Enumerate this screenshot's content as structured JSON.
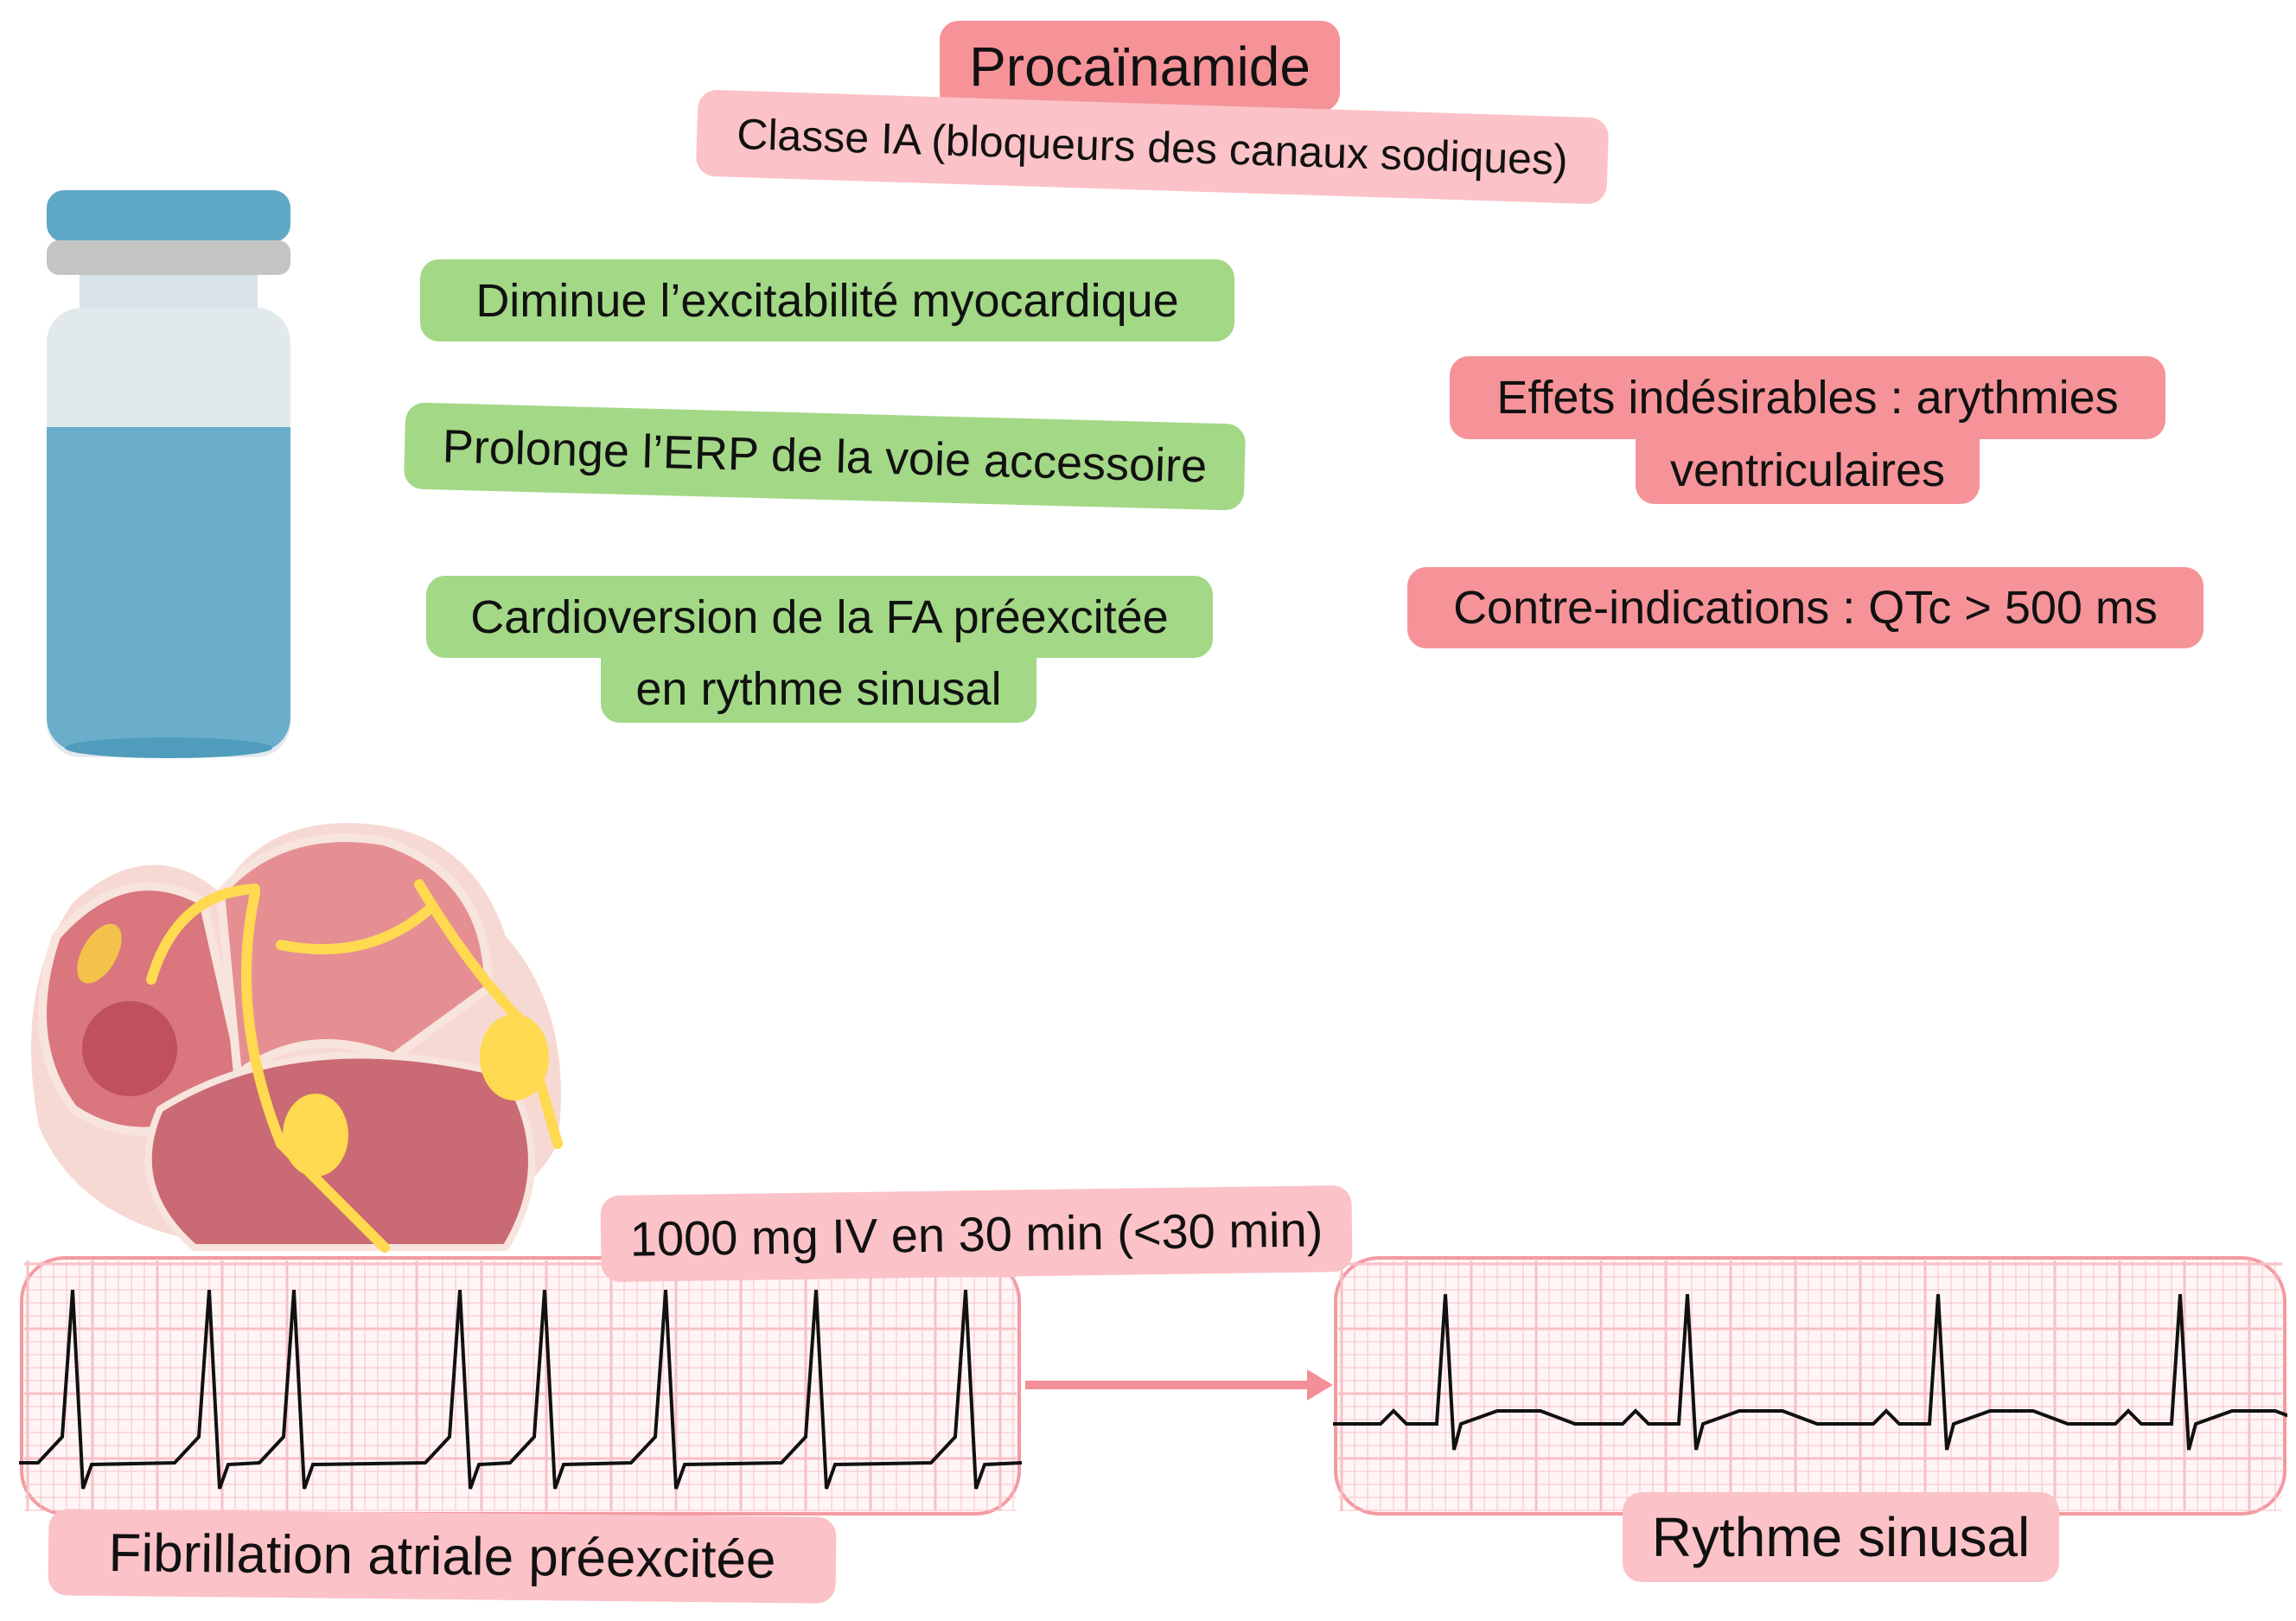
{
  "title": "Procaïnamide",
  "subtitle": "Classe IA (bloqueurs des canaux sodiques)",
  "effects": [
    "Diminue l’excitabilité myocardique",
    "Prolonge l’ERP de la voie accessoire"
  ],
  "indication": {
    "line1": "Cardioversion de la FA préexcitée",
    "line2": "en rythme sinusal"
  },
  "adverse": {
    "line1": "Effets indésirables : arythmies",
    "line2": "ventriculaires"
  },
  "contraindication": "Contre-indications : QTc > 500 ms",
  "dose": "1000 mg IV en 30 min (<30 min)",
  "ecg_before_label": "Fibrillation atriale préexcitée",
  "ecg_after_label": "Rythme sinusal",
  "colors": {
    "title": "#f59398",
    "pink": "#fbc2c7",
    "green": "#a3d886",
    "grid": "#f39aa2",
    "vial_blue": "#6aaecb"
  }
}
